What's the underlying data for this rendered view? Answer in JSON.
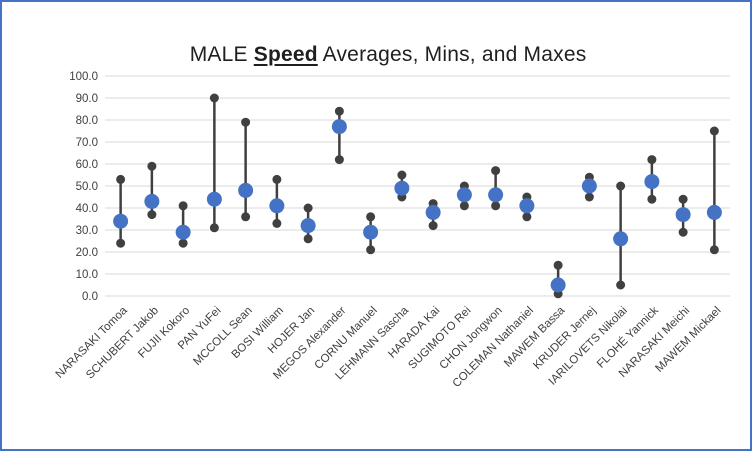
{
  "title": {
    "prefix": "MALE ",
    "emphasis": "Speed",
    "suffix": " Averages, Mins, and Maxes"
  },
  "chart_data": {
    "type": "stock-hilo",
    "title": "MALE Speed Averages, Mins, and Maxes",
    "categories": [
      "NARASAKI Tomoa",
      "SCHUBERT Jakob",
      "FUJII Kokoro",
      "PAN YuFei",
      "MCCOLL Sean",
      "BOSI William",
      "HOJER Jan",
      "MEGOS Alexander",
      "CORNU Manuel",
      "LEHMANN Sascha",
      "HARADA Kai",
      "SUGIMOTO Rei",
      "CHON Jongwon",
      "COLEMAN Nathaniel",
      "MAWEM Bassa",
      "KRUDER Jernej",
      "IARILOVETS Nikolai",
      "FLOHÉ Yannick",
      "NARASAKI Meichi",
      "MAWEM Mickael"
    ],
    "series": [
      {
        "name": "Min",
        "values": [
          24,
          37,
          24,
          31,
          36,
          33,
          26,
          62,
          21,
          45,
          32,
          41,
          41,
          36,
          1,
          45,
          5,
          44,
          29,
          21
        ]
      },
      {
        "name": "Average",
        "values": [
          34,
          43,
          29,
          44,
          48,
          41,
          32,
          77,
          29,
          49,
          38,
          46,
          46,
          41,
          5,
          50,
          26,
          52,
          37,
          38
        ]
      },
      {
        "name": "Max",
        "values": [
          53,
          59,
          41,
          90,
          79,
          53,
          40,
          84,
          36,
          55,
          42,
          50,
          57,
          45,
          14,
          54,
          50,
          62,
          44,
          75
        ]
      }
    ],
    "ylim": [
      0,
      100
    ],
    "ytick_step": 10,
    "ytick_labels": [
      "0.0",
      "10.0",
      "20.0",
      "30.0",
      "40.0",
      "50.0",
      "60.0",
      "70.0",
      "80.0",
      "90.0",
      "100.0"
    ],
    "grid": true,
    "legend": "none",
    "x_label_rotation_deg": -45,
    "colors": {
      "average_marker": "#4472C4",
      "minmax_marker": "#404040",
      "hilo_line": "#404040",
      "gridline": "#D9D9D9",
      "axis_text": "#404040",
      "title_text": "#1f1f1f",
      "frame_border": "#4472C4"
    }
  }
}
